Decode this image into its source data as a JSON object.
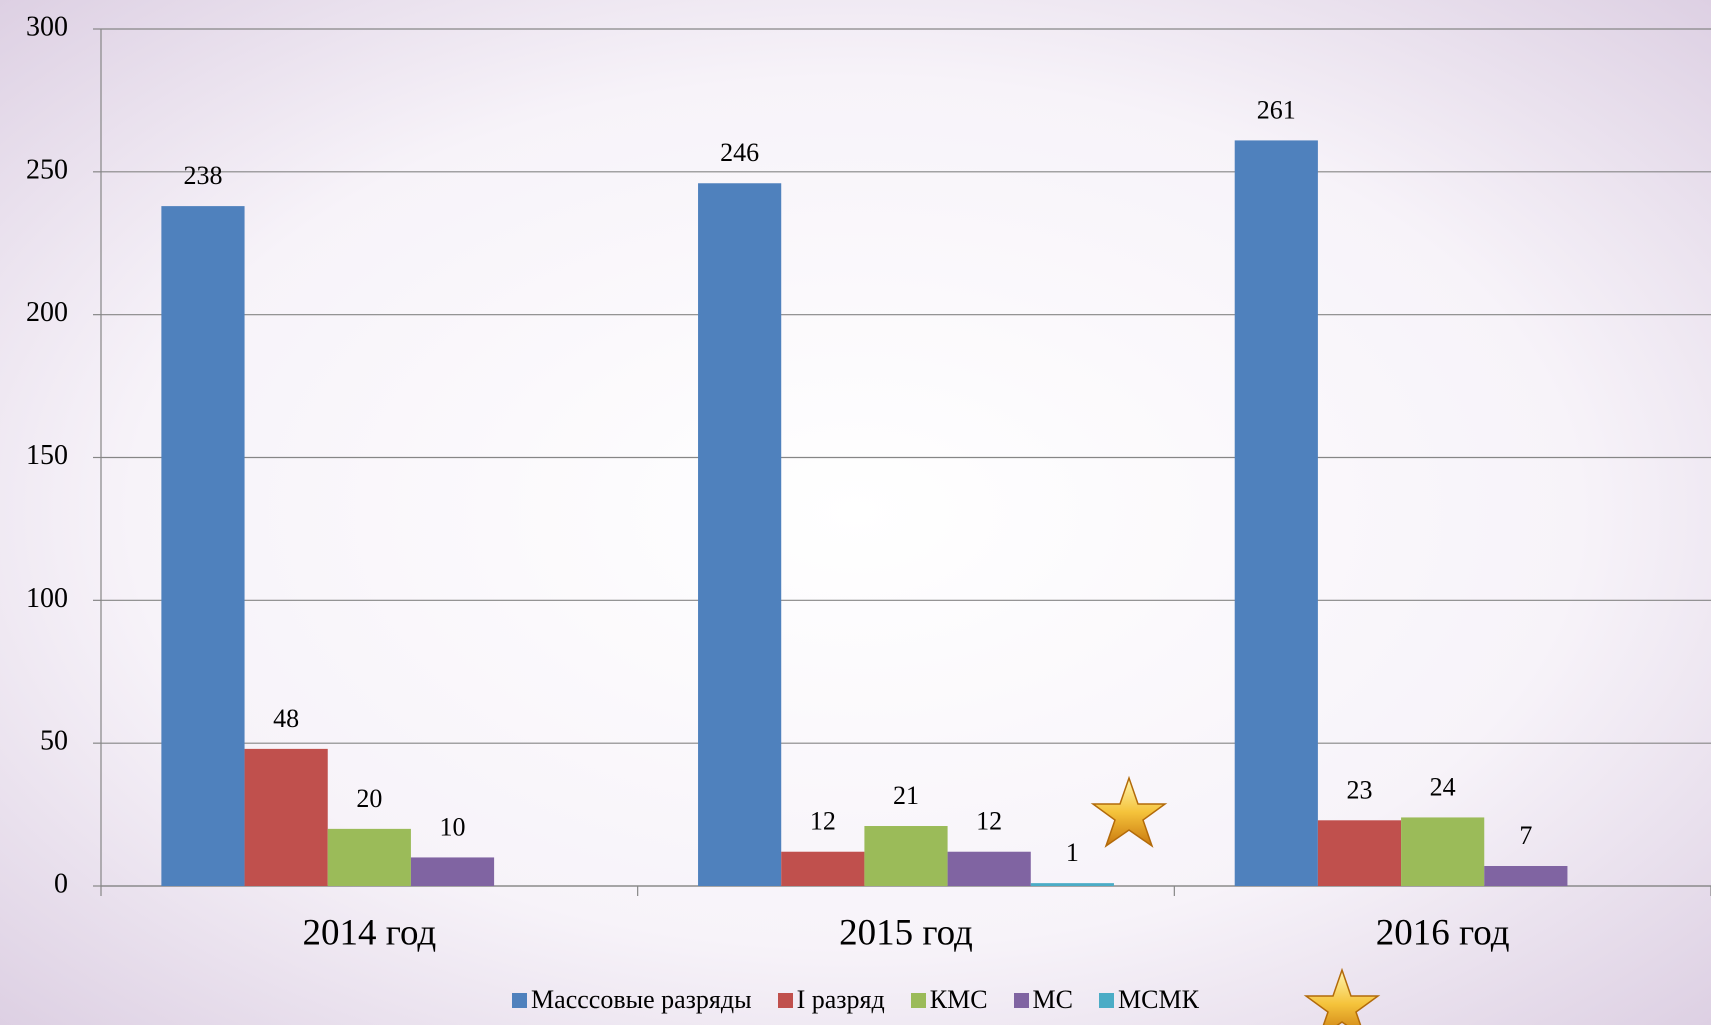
{
  "chart_data": {
    "type": "bar",
    "categories": [
      "2014 год",
      "2015 год",
      "2016 год"
    ],
    "series": [
      {
        "name": "Масссовые разряды",
        "color": "#4f81bd",
        "values": [
          238,
          246,
          261
        ]
      },
      {
        "name": "I разряд",
        "color": "#c0504d",
        "values": [
          48,
          12,
          23
        ]
      },
      {
        "name": "КМС",
        "color": "#9bbb59",
        "values": [
          20,
          21,
          24
        ]
      },
      {
        "name": "МС",
        "color": "#8064a2",
        "values": [
          10,
          12,
          7
        ]
      },
      {
        "name": "МСМК",
        "color": "#4bacc6",
        "values": [
          null,
          1,
          null
        ]
      }
    ],
    "ylim": [
      0,
      300
    ],
    "yticks": [
      0,
      50,
      100,
      150,
      200,
      250,
      300
    ],
    "grid": true,
    "legend": "bottom"
  }
}
